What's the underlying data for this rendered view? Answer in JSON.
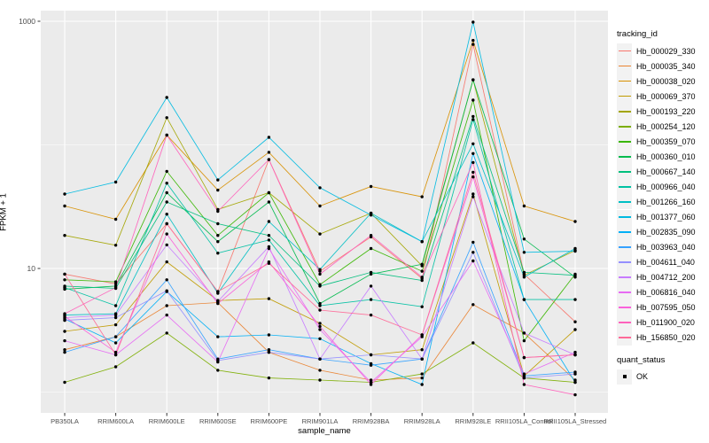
{
  "figure": {
    "background": "#FFFFFF",
    "panel_background": "#EBEBEB",
    "grid_color": "#FFFFFF",
    "axis_text_color": "#4D4D4D",
    "tick_color": "#333333",
    "point_color": "#000000"
  },
  "legend": {
    "tracking_title": "tracking_id",
    "quant_title": "quant_status",
    "quant_entries": [
      {
        "label": "OK"
      }
    ]
  },
  "chart_data": {
    "type": "line",
    "title": "",
    "xlabel": "sample_name",
    "ylabel": "FPKM + 1",
    "y_scale": "log10",
    "ylim": [
      0.68,
      1220
    ],
    "y_ticks": [
      {
        "value": 1000,
        "label": "1000"
      },
      {
        "value": 10,
        "label": "10"
      }
    ],
    "y_minor_gridlines": [
      100,
      1
    ],
    "grid": true,
    "legend_position": "right",
    "point_marker": "black dot (quant_status = OK)",
    "categories": [
      "PB350LA",
      "RRIM600LA",
      "RRIM600LE",
      "RRIM600SE",
      "RRIM600PE",
      "RRIM901LA",
      "RRIM928BA",
      "RRIM928LA",
      "RRIM928LE",
      "RRII105LA_Control",
      "RRII105LA_Stressed"
    ],
    "series": [
      {
        "name": "Hb_000029_330",
        "color": "#F8766D",
        "values": [
          9.0,
          7.5,
          23,
          6.5,
          76,
          9.5,
          18,
          8.3,
          650,
          9.0,
          3.7
        ]
      },
      {
        "name": "Hb_000035_340",
        "color": "#EA8331",
        "values": [
          2.2,
          2.8,
          5.0,
          5.3,
          2.1,
          1.5,
          1.25,
          1.3,
          5.1,
          3.0,
          1.25
        ]
      },
      {
        "name": "Hb_000038_020",
        "color": "#D89000",
        "values": [
          32,
          25,
          120,
          43,
          87,
          32,
          46,
          38,
          700,
          32,
          24
        ]
      },
      {
        "name": "Hb_000069_370",
        "color": "#C09B00",
        "values": [
          3.1,
          3.5,
          11.3,
          5.5,
          5.7,
          3.6,
          2.0,
          2.2,
          40,
          1.35,
          3.2
        ]
      },
      {
        "name": "Hb_000193_220",
        "color": "#A3A500",
        "values": [
          18.5,
          15.4,
          166,
          30,
          41,
          19,
          28,
          10.5,
          336,
          8.8,
          14
        ]
      },
      {
        "name": "Hb_000254_120",
        "color": "#7CAE00",
        "values": [
          1.2,
          1.6,
          3.0,
          1.5,
          1.3,
          1.25,
          1.2,
          1.4,
          2.5,
          1.3,
          1.2
        ]
      },
      {
        "name": "Hb_000359_070",
        "color": "#39B600",
        "values": [
          8.1,
          7.8,
          61,
          18.5,
          41,
          7.4,
          14.5,
          9.5,
          230,
          2.6,
          9.0
        ]
      },
      {
        "name": "Hb_000360_010",
        "color": "#00BB4E",
        "values": [
          6.8,
          7.2,
          41,
          16.5,
          34.5,
          5.2,
          9.0,
          10.8,
          336,
          17.3,
          8.5
        ]
      },
      {
        "name": "Hb_000667_140",
        "color": "#00BF7D",
        "values": [
          7.2,
          6.9,
          34.5,
          23,
          18.5,
          7.2,
          9.3,
          8.0,
          170,
          9.3,
          8.8
        ]
      },
      {
        "name": "Hb_000966_040",
        "color": "#00C1A3",
        "values": [
          7.0,
          5.0,
          49,
          13.3,
          17,
          5.0,
          5.6,
          4.9,
          160,
          5.6,
          5.6
        ]
      },
      {
        "name": "Hb_001266_160",
        "color": "#00BFC4",
        "values": [
          4.2,
          4.3,
          27.5,
          6.3,
          24,
          9.8,
          28,
          16.5,
          102,
          8.5,
          14.5
        ]
      },
      {
        "name": "Hb_001377_060",
        "color": "#00BAE0",
        "values": [
          40,
          50,
          242,
          52,
          115,
          45,
          27,
          16.5,
          984,
          13.5,
          13.8
        ]
      },
      {
        "name": "Hb_002835_090",
        "color": "#00B0F6",
        "values": [
          3.9,
          2.5,
          6.5,
          2.8,
          2.9,
          2.7,
          1.7,
          1.15,
          85,
          5.6,
          1.2
        ]
      },
      {
        "name": "Hb_003963_040",
        "color": "#35A2FF",
        "values": [
          2.1,
          2.8,
          8.1,
          1.85,
          2.2,
          1.85,
          1.65,
          1.85,
          16.3,
          1.35,
          1.45
        ]
      },
      {
        "name": "Hb_004611_040",
        "color": "#9590FF",
        "values": [
          3.8,
          4.0,
          6.6,
          1.8,
          2.1,
          1.85,
          2.0,
          1.85,
          13.5,
          1.3,
          1.4
        ]
      },
      {
        "name": "Hb_004712_200",
        "color": "#C77CFF",
        "values": [
          4.0,
          4.2,
          15.5,
          5.4,
          15,
          1.85,
          7.2,
          1.85,
          38,
          3.0,
          2.0
        ]
      },
      {
        "name": "Hb_006816_040",
        "color": "#E76BF3",
        "values": [
          2.6,
          2.0,
          4.2,
          1.75,
          14.5,
          3.2,
          1.2,
          2.8,
          11.5,
          1.4,
          2.1
        ]
      },
      {
        "name": "Hb_007595_050",
        "color": "#FA62DB",
        "values": [
          4.1,
          2.1,
          19,
          5.2,
          11.3,
          3.4,
          1.15,
          2.9,
          55,
          1.9,
          2.0
        ]
      },
      {
        "name": "Hb_011900_020",
        "color": "#FF62BC",
        "values": [
          4.3,
          7.0,
          120,
          29,
          76,
          9.0,
          18.5,
          8.5,
          72,
          1.15,
          0.95
        ]
      },
      {
        "name": "Hb_156850_020",
        "color": "#FF6A98",
        "values": [
          9.0,
          2.0,
          23,
          6.5,
          11,
          4.6,
          4.2,
          2.9,
          60,
          1.9,
          2.0
        ]
      }
    ]
  }
}
